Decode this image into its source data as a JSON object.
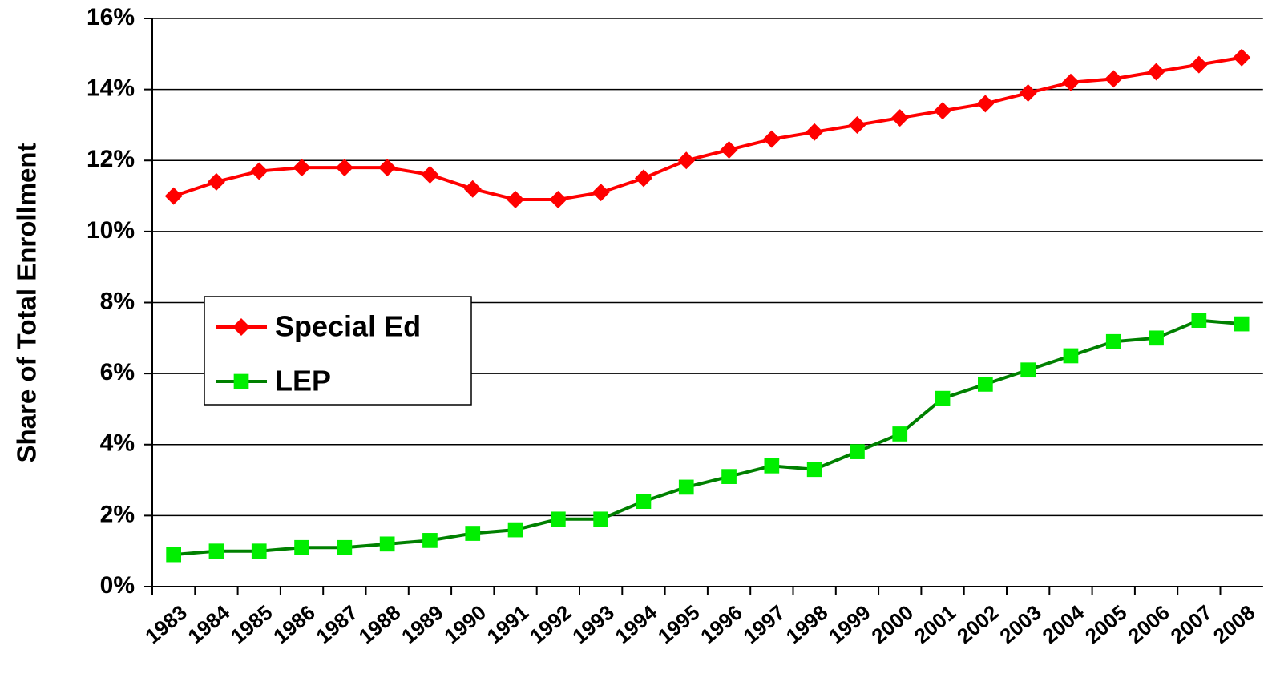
{
  "chart_data": {
    "type": "line",
    "y_label": "Share of Total Enrollment",
    "categories": [
      "1983",
      "1984",
      "1985",
      "1986",
      "1987",
      "1988",
      "1989",
      "1990",
      "1991",
      "1992",
      "1993",
      "1994",
      "1995",
      "1996",
      "1997",
      "1998",
      "1999",
      "2000",
      "2001",
      "2002",
      "2003",
      "2004",
      "2005",
      "2006",
      "2007",
      "2008"
    ],
    "series": [
      {
        "name": "Special Ed",
        "color": "#ff0000",
        "marker_color": "#ff0000",
        "marker": "diamond",
        "values": [
          11.0,
          11.4,
          11.7,
          11.8,
          11.8,
          11.8,
          11.6,
          11.2,
          10.9,
          10.9,
          11.1,
          11.5,
          12.0,
          12.3,
          12.6,
          12.8,
          13.0,
          13.2,
          13.4,
          13.6,
          13.9,
          14.2,
          14.3,
          14.5,
          14.7,
          14.9
        ]
      },
      {
        "name": "LEP",
        "color": "#008000",
        "marker_color": "#00ee00",
        "marker": "square",
        "values": [
          0.9,
          1.0,
          1.0,
          1.1,
          1.1,
          1.2,
          1.3,
          1.5,
          1.6,
          1.9,
          1.9,
          2.4,
          2.8,
          3.1,
          3.4,
          3.3,
          3.8,
          4.3,
          5.3,
          5.7,
          6.1,
          6.5,
          6.9,
          7.0,
          7.5,
          7.4
        ]
      }
    ],
    "ylim": [
      0,
      16
    ],
    "yticks": [
      {
        "value": 0,
        "label": "0%"
      },
      {
        "value": 2,
        "label": "2%"
      },
      {
        "value": 4,
        "label": "4%"
      },
      {
        "value": 6,
        "label": "6%"
      },
      {
        "value": 8,
        "label": "8%"
      },
      {
        "value": 10,
        "label": "10%"
      },
      {
        "value": 12,
        "label": "12%"
      },
      {
        "value": 14,
        "label": "14%"
      },
      {
        "value": 16,
        "label": "16%"
      }
    ],
    "grid": true,
    "legend": "left"
  }
}
